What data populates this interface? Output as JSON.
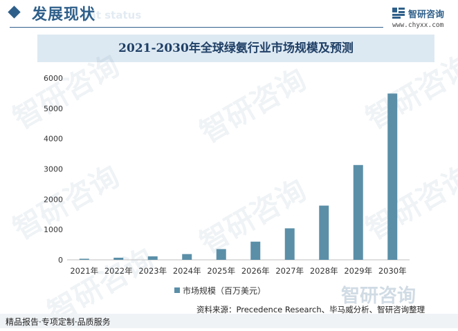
{
  "header": {
    "section_title": "发展现状",
    "section_subtitle": "ent status",
    "brand_name": "智研咨询",
    "brand_url": "www.chyxx.com"
  },
  "watermark_text": "智研咨询",
  "footer": {
    "source": "资料来源：Precedence Research、毕马威分析、智研咨询整理",
    "tagline": "精品报告·专项定制·品质服务",
    "brand": "智研咨询"
  },
  "colors": {
    "bar": "#5b8fa8",
    "accent": "#2e5f8a",
    "title_bg": "#dde9f2"
  },
  "chart_data": {
    "type": "bar",
    "title": "2021-2030年全球绿氨行业市场规模及预测",
    "categories": [
      "2021年",
      "2022年",
      "2023年",
      "2024年",
      "2025年",
      "2026年",
      "2027年",
      "2028年",
      "2029年",
      "2030年"
    ],
    "series": [
      {
        "name": "市场规模（百万美元）",
        "values": [
          36,
          70,
          115,
          190,
          355,
          600,
          1040,
          1790,
          3130,
          5490
        ]
      }
    ],
    "y_ticks": [
      0,
      1000,
      2000,
      3000,
      4000,
      5000,
      6000
    ],
    "ylim": [
      0,
      6000
    ],
    "grid": false,
    "legend_position": "bottom"
  }
}
